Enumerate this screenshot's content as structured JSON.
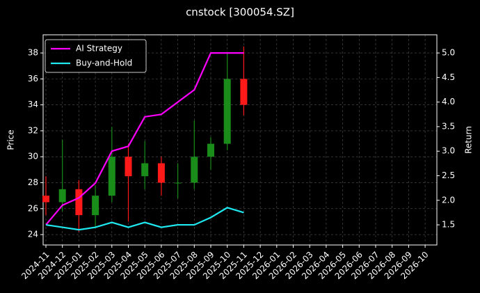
{
  "chart_data": {
    "type": "candlestick",
    "title": "cnstock [300054.SZ]",
    "ylabel": "Price",
    "y2label": "Return",
    "x": [
      "2024-11",
      "2024-12",
      "2025-01",
      "2025-02",
      "2025-03",
      "2025-04",
      "2025-05",
      "2025-06",
      "2025-07",
      "2025-08",
      "2025-09",
      "2025-10",
      "2025-11"
    ],
    "open": [
      27,
      26.5,
      27.5,
      25.5,
      27,
      30,
      28.5,
      29.5,
      28,
      28,
      30,
      31,
      36
    ],
    "high": [
      28.5,
      31.3,
      28.2,
      27.8,
      32.3,
      31,
      31.2,
      30,
      29.5,
      32.8,
      31.5,
      38,
      38.5
    ],
    "low": [
      25.5,
      25.8,
      24.2,
      24.5,
      26.5,
      25,
      27.5,
      27,
      26.8,
      27.5,
      29,
      30.5,
      33.2
    ],
    "close": [
      26.5,
      27.5,
      25.5,
      27,
      30,
      28.5,
      29.5,
      28,
      28,
      30,
      31,
      36,
      34
    ],
    "up_color": "#1a8c1a",
    "down_color": "#ff1a1a",
    "series": [
      {
        "name": "AI Strategy",
        "color": "#ff00ff",
        "axis": "y2",
        "values": [
          1.5,
          1.9,
          2.05,
          2.35,
          3.0,
          3.1,
          3.7,
          3.75,
          4.0,
          4.25,
          5.0,
          5.0,
          5.0
        ]
      },
      {
        "name": "Buy-and-Hold",
        "color": "#1ee8f0",
        "axis": "y2",
        "values": [
          1.5,
          1.45,
          1.4,
          1.45,
          1.55,
          1.45,
          1.55,
          1.45,
          1.5,
          1.5,
          1.65,
          1.85,
          1.75
        ]
      }
    ],
    "xticks": [
      "2024-11",
      "2024-12",
      "2025-01",
      "2025-02",
      "2025-03",
      "2025-04",
      "2025-05",
      "2025-06",
      "2025-07",
      "2025-08",
      "2025-09",
      "2025-10",
      "2025-11",
      "2025-12",
      "2026-01",
      "2026-02",
      "2026-03",
      "2026-04",
      "2026-05",
      "2026-06",
      "2026-07",
      "2026-08",
      "2026-09",
      "2026-10"
    ],
    "ylim": [
      23.2,
      39.4
    ],
    "yticks": [
      24,
      26,
      28,
      30,
      32,
      34,
      36,
      38
    ],
    "y2lim": [
      1.09,
      5.37
    ],
    "y2ticks": [
      1.5,
      {
        "value": 2,
        "label": "2.0"
      },
      2.5,
      {
        "value": 3,
        "label": "3.0"
      },
      3.5,
      {
        "value": 4,
        "label": "4.0"
      },
      4.5,
      {
        "value": 5,
        "label": "5.0"
      }
    ],
    "grid": true,
    "legend": "upper left"
  }
}
